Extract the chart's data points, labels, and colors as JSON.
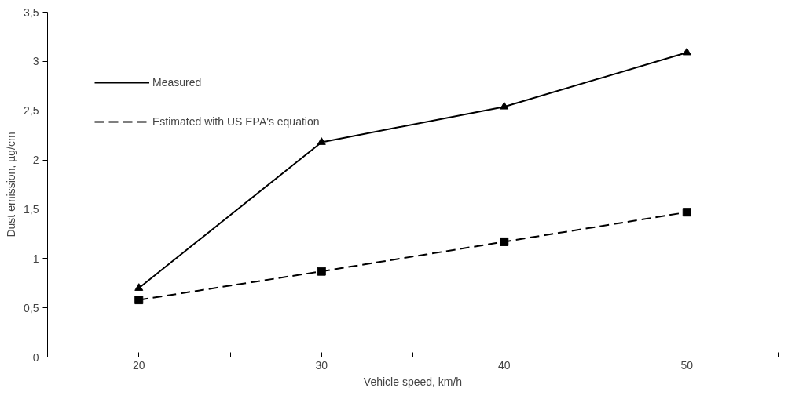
{
  "chart_data": {
    "type": "line",
    "xlabel": "Vehicle speed, km/h",
    "ylabel": "Dust emission, µg/cm",
    "x": [
      20,
      30,
      40,
      50
    ],
    "series": [
      {
        "name": "Measured",
        "color": "#000000",
        "marker": "triangle",
        "line_style": "solid",
        "values": [
          0.7,
          2.18,
          2.54,
          3.09
        ]
      },
      {
        "name": "Estimated with US EPA's equation",
        "color": "#000000",
        "marker": "square",
        "line_style": "dashed",
        "values": [
          0.58,
          0.87,
          1.17,
          1.47
        ]
      }
    ],
    "xlim": [
      15,
      55
    ],
    "xticks": [
      {
        "value": 15,
        "label": null
      },
      20,
      {
        "value": 25,
        "label": null
      },
      30,
      {
        "value": 35,
        "label": null
      },
      40,
      {
        "value": 45,
        "label": null
      },
      50,
      {
        "value": 55,
        "label": null
      }
    ],
    "ylim": [
      0,
      3.5
    ],
    "yticks": [
      0,
      {
        "value": 0.5,
        "label": "0,5"
      },
      1,
      {
        "value": 1.5,
        "label": "1,5"
      },
      2,
      {
        "value": 2.5,
        "label": "2,5"
      },
      3,
      {
        "value": 3.5,
        "label": "3,5"
      }
    ],
    "grid": false,
    "legend": "top left"
  }
}
